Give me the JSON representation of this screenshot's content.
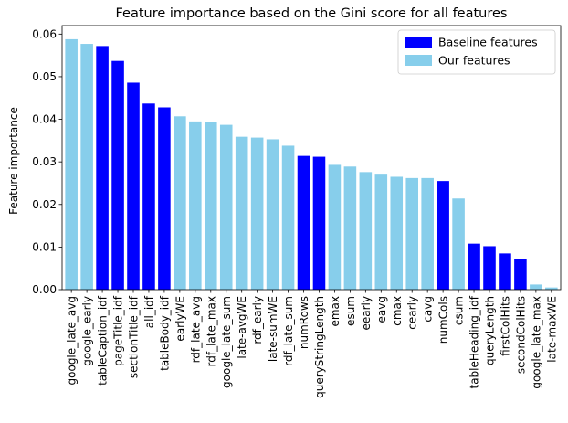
{
  "chart_data": {
    "type": "bar",
    "title": "Feature importance based on the Gini score for all features",
    "xlabel": "",
    "ylabel": "Feature importance",
    "ylim": [
      0,
      0.062
    ],
    "yticks": [
      "0.00",
      "0.01",
      "0.02",
      "0.03",
      "0.04",
      "0.05",
      "0.06"
    ],
    "ytick_values": [
      0,
      0.01,
      0.02,
      0.03,
      0.04,
      0.05,
      0.06
    ],
    "grid": false,
    "legend_position": "top-right",
    "colors": {
      "baseline": "#0000ff",
      "ours": "#87ceeb"
    },
    "legend": [
      {
        "label": "Baseline features",
        "group": "baseline"
      },
      {
        "label": "Our features",
        "group": "ours"
      }
    ],
    "categories": [
      "google_late_avg",
      "google_early",
      "tableCaption_idf",
      "pageTitle_idf",
      "sectionTitle_idf",
      "all_idf",
      "tableBody_idf",
      "earlyWE",
      "rdf_late_avg",
      "rdf_late_max",
      "google_late_sum",
      "late-avgWE",
      "rdf_early",
      "late-sumWE",
      "rdf_late_sum",
      "numRows",
      "queryStringLength",
      "emax",
      "esum",
      "eearly",
      "eavg",
      "cmax",
      "cearly",
      "cavg",
      "numCols",
      "csum",
      "tableHeading_idf",
      "queryLength",
      "firstColHits",
      "secondColHits",
      "google_late_max",
      "late-maxWE"
    ],
    "values": [
      0.0588,
      0.0577,
      0.0572,
      0.0537,
      0.0486,
      0.0437,
      0.0428,
      0.0407,
      0.0395,
      0.0393,
      0.0387,
      0.0359,
      0.0357,
      0.0353,
      0.0338,
      0.0314,
      0.0312,
      0.0293,
      0.0289,
      0.0276,
      0.027,
      0.0265,
      0.0262,
      0.0262,
      0.0255,
      0.0214,
      0.0108,
      0.0102,
      0.0085,
      0.0072,
      0.0012,
      0.0005
    ],
    "groups": [
      "ours",
      "ours",
      "baseline",
      "baseline",
      "baseline",
      "baseline",
      "baseline",
      "ours",
      "ours",
      "ours",
      "ours",
      "ours",
      "ours",
      "ours",
      "ours",
      "baseline",
      "baseline",
      "ours",
      "ours",
      "ours",
      "ours",
      "ours",
      "ours",
      "ours",
      "baseline",
      "ours",
      "baseline",
      "baseline",
      "baseline",
      "baseline",
      "ours",
      "ours"
    ]
  }
}
